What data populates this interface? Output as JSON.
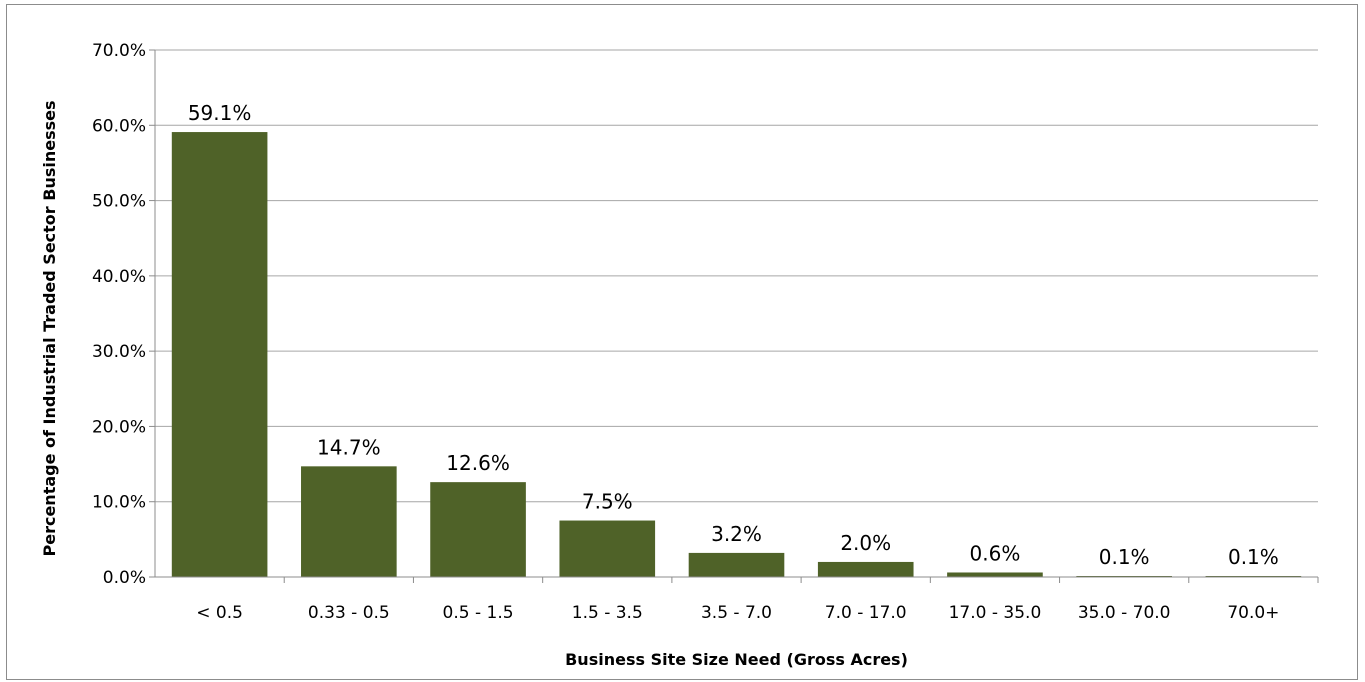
{
  "chart_data": {
    "type": "bar",
    "title": "",
    "xlabel": "Business Site Size Need (Gross Acres)",
    "ylabel": "Percentage of Industrial Traded Sector Businesses",
    "categories": [
      "< 0.5",
      "0.33 - 0.5",
      "0.5 - 1.5",
      "1.5 - 3.5",
      "3.5 - 7.0",
      "7.0 - 17.0",
      "17.0 - 35.0",
      "35.0 - 70.0",
      "70.0+"
    ],
    "values": [
      59.1,
      14.7,
      12.6,
      7.5,
      3.2,
      2.0,
      0.6,
      0.1,
      0.1
    ],
    "data_labels": [
      "59.1%",
      "14.7%",
      "12.6%",
      "7.5%",
      "3.2%",
      "2.0%",
      "0.6%",
      "0.1%",
      "0.1%"
    ],
    "ylim": [
      0,
      70
    ],
    "yticks": [
      "0.0%",
      "10.0%",
      "20.0%",
      "30.0%",
      "40.0%",
      "50.0%",
      "60.0%",
      "70.0%"
    ],
    "grid": true,
    "legend": "none",
    "colors": {
      "bar": "#4f6228",
      "grid": "#a6a6a6",
      "axis": "#8c8c8c"
    }
  }
}
